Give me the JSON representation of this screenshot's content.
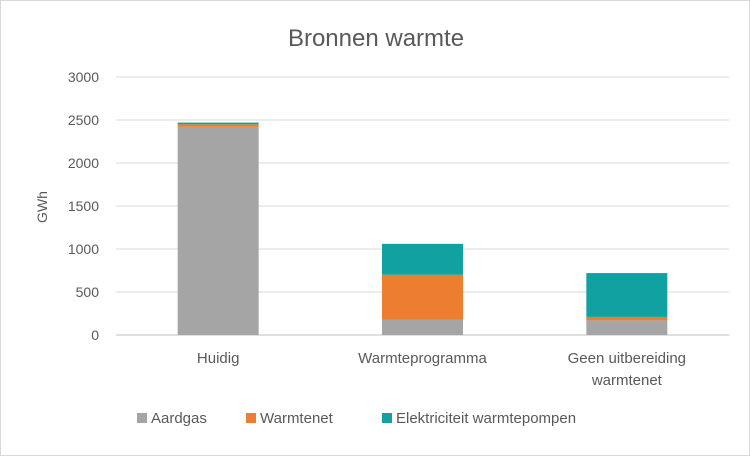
{
  "chart_data": {
    "type": "bar",
    "stacked": true,
    "title": "Bronnen warmte",
    "ylabel": "GWh",
    "xlabel": "",
    "ylim": [
      0,
      3000
    ],
    "yticks": [
      0,
      500,
      1000,
      1500,
      2000,
      2500,
      3000
    ],
    "grid": true,
    "legend_position": "bottom",
    "categories": [
      [
        "Huidig"
      ],
      [
        "Warmteprogramma"
      ],
      [
        "Geen uitbereiding",
        "warmtenet"
      ]
    ],
    "series": [
      {
        "name": "Aardgas",
        "color": "#a5a5a5",
        "values": [
          2420,
          180,
          170
        ]
      },
      {
        "name": "Warmtenet",
        "color": "#ed7d31",
        "values": [
          30,
          520,
          40
        ]
      },
      {
        "name": "Elektriciteit warmtepompen",
        "color": "#12a1a1",
        "values": [
          20,
          360,
          510
        ]
      }
    ]
  }
}
